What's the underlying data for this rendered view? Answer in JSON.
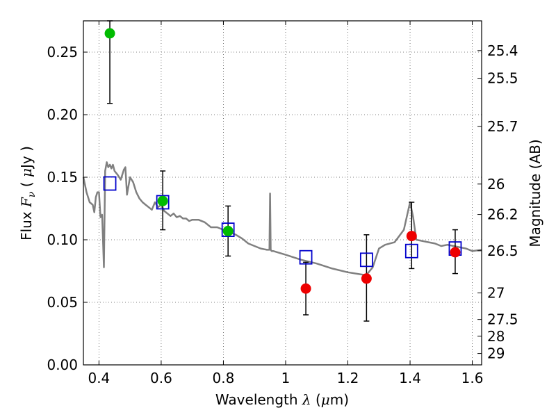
{
  "chart_data": {
    "type": "scatter",
    "xlabel": {
      "prefix": "Wavelength  ",
      "symbol": "λ",
      "unit_open": " (",
      "unit_mu": "μ",
      "unit_rest": "m)"
    },
    "ylabel": {
      "prefix": "Flux  ",
      "symbol": "F",
      "subscript": "ν",
      "unit_open": "  ( ",
      "unit_mu": "μ",
      "unit_rest": "Jy )"
    },
    "y2label": "Magnitude (AB)",
    "xlim": [
      0.35,
      1.63
    ],
    "ylim": [
      0.0,
      0.275
    ],
    "xticks": [
      {
        "v": 0.4,
        "label": "0.4"
      },
      {
        "v": 0.6,
        "label": "0.6"
      },
      {
        "v": 0.8,
        "label": "0.8"
      },
      {
        "v": 1.0,
        "label": "1"
      },
      {
        "v": 1.2,
        "label": "1.2"
      },
      {
        "v": 1.4,
        "label": "1.4"
      },
      {
        "v": 1.6,
        "label": "1.6"
      }
    ],
    "yticks": [
      {
        "v": 0.0,
        "label": "0.00"
      },
      {
        "v": 0.05,
        "label": "0.05"
      },
      {
        "v": 0.1,
        "label": "0.10"
      },
      {
        "v": 0.15,
        "label": "0.15"
      },
      {
        "v": 0.2,
        "label": "0.20"
      },
      {
        "v": 0.25,
        "label": "0.25"
      }
    ],
    "y2ticks": [
      {
        "mag": 25.4,
        "label": "25.4"
      },
      {
        "mag": 25.5,
        "label": "25.5"
      },
      {
        "mag": 25.7,
        "label": "25.7"
      },
      {
        "mag": 26.0,
        "label": "26"
      },
      {
        "mag": 26.2,
        "label": "26.2"
      },
      {
        "mag": 26.5,
        "label": "26.5"
      },
      {
        "mag": 27.0,
        "label": "27"
      },
      {
        "mag": 27.5,
        "label": "27.5"
      },
      {
        "mag": 28.0,
        "label": "28"
      },
      {
        "mag": 29.0,
        "label": "29"
      }
    ],
    "grid": true,
    "model_spectrum": {
      "color": "#808080",
      "x": [
        0.35,
        0.36,
        0.37,
        0.38,
        0.385,
        0.39,
        0.395,
        0.4,
        0.405,
        0.41,
        0.413,
        0.416,
        0.42,
        0.425,
        0.43,
        0.435,
        0.44,
        0.445,
        0.45,
        0.46,
        0.47,
        0.48,
        0.485,
        0.49,
        0.5,
        0.51,
        0.52,
        0.53,
        0.54,
        0.55,
        0.56,
        0.57,
        0.58,
        0.59,
        0.6,
        0.61,
        0.62,
        0.63,
        0.64,
        0.65,
        0.66,
        0.67,
        0.68,
        0.69,
        0.7,
        0.72,
        0.74,
        0.76,
        0.78,
        0.8,
        0.82,
        0.84,
        0.86,
        0.88,
        0.9,
        0.92,
        0.94,
        0.948,
        0.95,
        0.952,
        0.955,
        0.96,
        1.0,
        1.05,
        1.1,
        1.15,
        1.2,
        1.25,
        1.26,
        1.28,
        1.3,
        1.32,
        1.35,
        1.38,
        1.4,
        1.41,
        1.42,
        1.44,
        1.46,
        1.48,
        1.5,
        1.52,
        1.54,
        1.56,
        1.58,
        1.6,
        1.63
      ],
      "y": [
        0.15,
        0.138,
        0.13,
        0.128,
        0.122,
        0.134,
        0.138,
        0.138,
        0.118,
        0.12,
        0.1,
        0.078,
        0.155,
        0.162,
        0.158,
        0.16,
        0.157,
        0.16,
        0.155,
        0.152,
        0.148,
        0.156,
        0.158,
        0.136,
        0.15,
        0.146,
        0.138,
        0.133,
        0.13,
        0.128,
        0.126,
        0.124,
        0.13,
        0.126,
        0.128,
        0.123,
        0.121,
        0.119,
        0.121,
        0.118,
        0.119,
        0.117,
        0.117,
        0.115,
        0.116,
        0.116,
        0.114,
        0.11,
        0.11,
        0.108,
        0.106,
        0.104,
        0.101,
        0.097,
        0.095,
        0.093,
        0.092,
        0.092,
        0.137,
        0.092,
        0.091,
        0.091,
        0.088,
        0.084,
        0.081,
        0.077,
        0.074,
        0.072,
        0.072,
        0.078,
        0.093,
        0.096,
        0.098,
        0.108,
        0.13,
        0.118,
        0.1,
        0.099,
        0.098,
        0.097,
        0.095,
        0.096,
        0.095,
        0.094,
        0.093,
        0.091,
        0.092
      ]
    },
    "model_points": {
      "marker": "square",
      "color": "#0000cc",
      "points": [
        {
          "x": 0.435,
          "y": 0.145
        },
        {
          "x": 0.605,
          "y": 0.13
        },
        {
          "x": 0.815,
          "y": 0.108
        },
        {
          "x": 1.065,
          "y": 0.086
        },
        {
          "x": 1.26,
          "y": 0.084
        },
        {
          "x": 1.405,
          "y": 0.091
        },
        {
          "x": 1.545,
          "y": 0.093
        }
      ]
    },
    "observed_green": {
      "marker": "circle",
      "color": "#00bb00",
      "points": [
        {
          "x": 0.435,
          "y": 0.265,
          "ylo": 0.209,
          "yhi": 0.275
        },
        {
          "x": 0.605,
          "y": 0.131,
          "ylo": 0.108,
          "yhi": 0.155
        },
        {
          "x": 0.815,
          "y": 0.107,
          "ylo": 0.087,
          "yhi": 0.127
        }
      ]
    },
    "observed_red": {
      "marker": "circle",
      "color": "#ee0000",
      "points": [
        {
          "x": 1.065,
          "y": 0.061,
          "ylo": 0.04,
          "yhi": 0.082
        },
        {
          "x": 1.26,
          "y": 0.069,
          "ylo": 0.035,
          "yhi": 0.104
        },
        {
          "x": 1.405,
          "y": 0.103,
          "ylo": 0.077,
          "yhi": 0.13
        },
        {
          "x": 1.545,
          "y": 0.09,
          "ylo": 0.073,
          "yhi": 0.108
        }
      ]
    }
  }
}
